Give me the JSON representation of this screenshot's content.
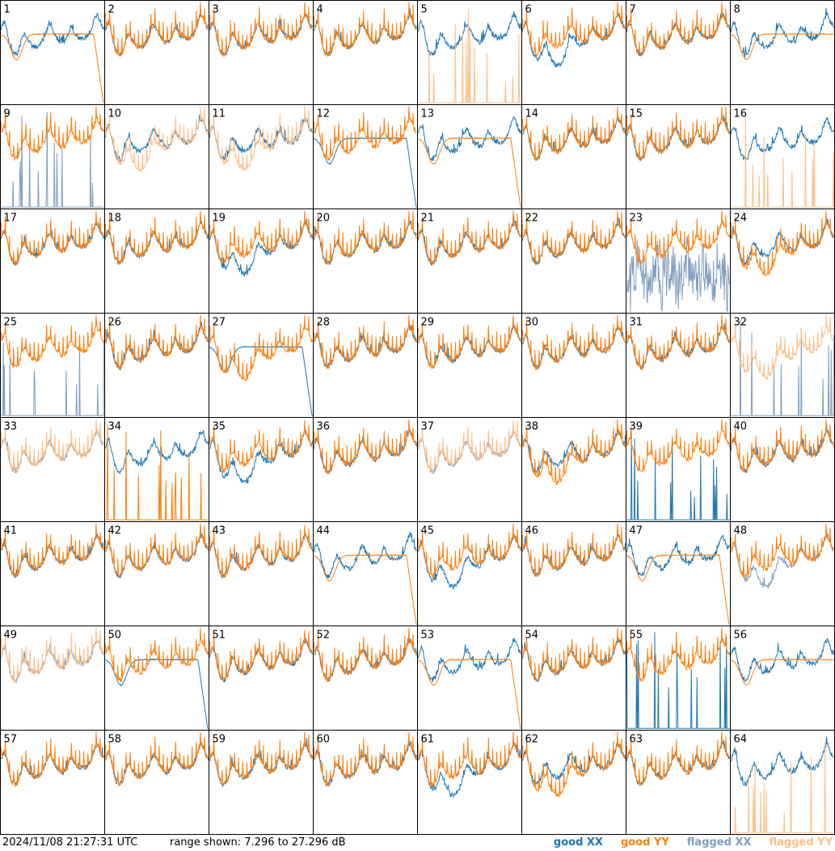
{
  "footer": {
    "timestamp": "2024/11/08 21:27:31 UTC",
    "range_text": "range shown: 7.296 to 27.296 dB"
  },
  "legend": [
    {
      "label": "good XX",
      "color": "#1f77b4"
    },
    {
      "label": "good YY",
      "color": "#ff7f0e"
    },
    {
      "label": "flagged XX",
      "color": "#7f9fbf"
    },
    {
      "label": "flagged YY",
      "color": "#ffbf87"
    }
  ],
  "chart_data": {
    "type": "line",
    "ylim": [
      7.296,
      27.296
    ],
    "yunit": "dB",
    "grid": false,
    "legend_position": "bottom-right",
    "series_colors": {
      "good_xx": "#1f77b4",
      "good_yy": "#ff7f0e",
      "flagged_xx": "#7f9fbf",
      "flagged_yy": "#ffbf87"
    },
    "panels": [
      {
        "label": "1",
        "xx": "good",
        "yy": "good",
        "xx_shape": "normal",
        "yy_shape": "smooth-dip"
      },
      {
        "label": "2",
        "xx": "good",
        "yy": "good",
        "xx_shape": "normal",
        "yy_shape": "normal"
      },
      {
        "label": "3",
        "xx": "good",
        "yy": "good",
        "xx_shape": "normal",
        "yy_shape": "normal"
      },
      {
        "label": "4",
        "xx": "good",
        "yy": "good",
        "xx_shape": "normal",
        "yy_shape": "normal"
      },
      {
        "label": "5",
        "xx": "good",
        "yy": "flagged",
        "xx_shape": "normal",
        "yy_shape": "spikes"
      },
      {
        "label": "6",
        "xx": "good",
        "yy": "good",
        "xx_shape": "deep",
        "yy_shape": "normal"
      },
      {
        "label": "7",
        "xx": "good",
        "yy": "good",
        "xx_shape": "normal",
        "yy_shape": "normal"
      },
      {
        "label": "8",
        "xx": "good",
        "yy": "good",
        "xx_shape": "normal",
        "yy_shape": "smooth"
      },
      {
        "label": "9",
        "xx": "flagged",
        "yy": "good",
        "xx_shape": "spikes",
        "yy_shape": "normal"
      },
      {
        "label": "10",
        "xx": "good",
        "yy": "flagged",
        "xx_shape": "normal",
        "yy_shape": "deep"
      },
      {
        "label": "11",
        "xx": "good",
        "yy": "flagged",
        "xx_shape": "normal",
        "yy_shape": "deep"
      },
      {
        "label": "12",
        "xx": "good",
        "yy": "good",
        "xx_shape": "smooth-dip",
        "yy_shape": "normal"
      },
      {
        "label": "13",
        "xx": "good",
        "yy": "good",
        "xx_shape": "normal",
        "yy_shape": "smooth-dip"
      },
      {
        "label": "14",
        "xx": "good",
        "yy": "good",
        "xx_shape": "normal",
        "yy_shape": "normal"
      },
      {
        "label": "15",
        "xx": "good",
        "yy": "good",
        "xx_shape": "normal",
        "yy_shape": "normal"
      },
      {
        "label": "16",
        "xx": "good",
        "yy": "flagged",
        "xx_shape": "normal",
        "yy_shape": "spikes"
      },
      {
        "label": "17",
        "xx": "good",
        "yy": "good",
        "xx_shape": "normal",
        "yy_shape": "normal"
      },
      {
        "label": "18",
        "xx": "good",
        "yy": "good",
        "xx_shape": "normal",
        "yy_shape": "normal"
      },
      {
        "label": "19",
        "xx": "good",
        "yy": "good",
        "xx_shape": "deep",
        "yy_shape": "normal"
      },
      {
        "label": "20",
        "xx": "good",
        "yy": "good",
        "xx_shape": "normal",
        "yy_shape": "normal"
      },
      {
        "label": "21",
        "xx": "good",
        "yy": "good",
        "xx_shape": "normal",
        "yy_shape": "normal"
      },
      {
        "label": "22",
        "xx": "good",
        "yy": "good",
        "xx_shape": "normal",
        "yy_shape": "normal"
      },
      {
        "label": "23",
        "xx": "flagged",
        "yy": "good",
        "xx_shape": "noisy-low",
        "yy_shape": "normal"
      },
      {
        "label": "24",
        "xx": "good",
        "yy": "good",
        "xx_shape": "normal",
        "yy_shape": "deep"
      },
      {
        "label": "25",
        "xx": "flagged",
        "yy": "good",
        "xx_shape": "spikes",
        "yy_shape": "normal"
      },
      {
        "label": "26",
        "xx": "good",
        "yy": "good",
        "xx_shape": "normal",
        "yy_shape": "normal"
      },
      {
        "label": "27",
        "xx": "good",
        "yy": "good",
        "xx_shape": "smooth-dip",
        "yy_shape": "deep"
      },
      {
        "label": "28",
        "xx": "good",
        "yy": "good",
        "xx_shape": "normal",
        "yy_shape": "normal"
      },
      {
        "label": "29",
        "xx": "good",
        "yy": "good",
        "xx_shape": "normal",
        "yy_shape": "normal"
      },
      {
        "label": "30",
        "xx": "good",
        "yy": "good",
        "xx_shape": "normal",
        "yy_shape": "normal"
      },
      {
        "label": "31",
        "xx": "good",
        "yy": "good",
        "xx_shape": "normal",
        "yy_shape": "normal"
      },
      {
        "label": "32",
        "xx": "flagged",
        "yy": "flagged",
        "xx_shape": "spikes",
        "yy_shape": "deep"
      },
      {
        "label": "33",
        "xx": "flagged",
        "yy": "flagged",
        "xx_shape": "normal",
        "yy_shape": "normal"
      },
      {
        "label": "34",
        "xx": "good",
        "yy": "good",
        "xx_shape": "normal",
        "yy_shape": "spikes"
      },
      {
        "label": "35",
        "xx": "good",
        "yy": "good",
        "xx_shape": "deep",
        "yy_shape": "normal"
      },
      {
        "label": "36",
        "xx": "good",
        "yy": "good",
        "xx_shape": "normal",
        "yy_shape": "normal"
      },
      {
        "label": "37",
        "xx": "flagged",
        "yy": "flagged",
        "xx_shape": "normal",
        "yy_shape": "normal"
      },
      {
        "label": "38",
        "xx": "good",
        "yy": "good",
        "xx_shape": "normal",
        "yy_shape": "deep"
      },
      {
        "label": "39",
        "xx": "good",
        "yy": "good",
        "xx_shape": "spikes",
        "yy_shape": "normal"
      },
      {
        "label": "40",
        "xx": "good",
        "yy": "good",
        "xx_shape": "normal",
        "yy_shape": "normal"
      },
      {
        "label": "41",
        "xx": "good",
        "yy": "good",
        "xx_shape": "normal",
        "yy_shape": "normal"
      },
      {
        "label": "42",
        "xx": "good",
        "yy": "good",
        "xx_shape": "normal",
        "yy_shape": "normal"
      },
      {
        "label": "43",
        "xx": "good",
        "yy": "good",
        "xx_shape": "normal",
        "yy_shape": "normal"
      },
      {
        "label": "44",
        "xx": "good",
        "yy": "good",
        "xx_shape": "normal",
        "yy_shape": "smooth-dip"
      },
      {
        "label": "45",
        "xx": "good",
        "yy": "good",
        "xx_shape": "deep",
        "yy_shape": "normal"
      },
      {
        "label": "46",
        "xx": "good",
        "yy": "good",
        "xx_shape": "normal",
        "yy_shape": "normal"
      },
      {
        "label": "47",
        "xx": "good",
        "yy": "good",
        "xx_shape": "normal",
        "yy_shape": "smooth-dip"
      },
      {
        "label": "48",
        "xx": "flagged",
        "yy": "good",
        "xx_shape": "deep",
        "yy_shape": "normal"
      },
      {
        "label": "49",
        "xx": "flagged",
        "yy": "flagged",
        "xx_shape": "normal",
        "yy_shape": "normal"
      },
      {
        "label": "50",
        "xx": "good",
        "yy": "good",
        "xx_shape": "smooth-dip",
        "yy_shape": "normal"
      },
      {
        "label": "51",
        "xx": "good",
        "yy": "good",
        "xx_shape": "normal",
        "yy_shape": "normal"
      },
      {
        "label": "52",
        "xx": "good",
        "yy": "good",
        "xx_shape": "normal",
        "yy_shape": "normal"
      },
      {
        "label": "53",
        "xx": "good",
        "yy": "good",
        "xx_shape": "normal",
        "yy_shape": "smooth-dip"
      },
      {
        "label": "54",
        "xx": "good",
        "yy": "good",
        "xx_shape": "normal",
        "yy_shape": "normal"
      },
      {
        "label": "55",
        "xx": "good",
        "yy": "good",
        "xx_shape": "spikes",
        "yy_shape": "normal"
      },
      {
        "label": "56",
        "xx": "good",
        "yy": "good",
        "xx_shape": "normal",
        "yy_shape": "smooth"
      },
      {
        "label": "57",
        "xx": "good",
        "yy": "good",
        "xx_shape": "normal",
        "yy_shape": "normal"
      },
      {
        "label": "58",
        "xx": "good",
        "yy": "good",
        "xx_shape": "normal",
        "yy_shape": "normal"
      },
      {
        "label": "59",
        "xx": "good",
        "yy": "good",
        "xx_shape": "normal",
        "yy_shape": "normal"
      },
      {
        "label": "60",
        "xx": "good",
        "yy": "good",
        "xx_shape": "normal",
        "yy_shape": "normal"
      },
      {
        "label": "61",
        "xx": "good",
        "yy": "good",
        "xx_shape": "deep",
        "yy_shape": "normal"
      },
      {
        "label": "62",
        "xx": "good",
        "yy": "good",
        "xx_shape": "normal",
        "yy_shape": "deep"
      },
      {
        "label": "63",
        "xx": "good",
        "yy": "good",
        "xx_shape": "normal",
        "yy_shape": "normal"
      },
      {
        "label": "64",
        "xx": "good",
        "yy": "flagged",
        "xx_shape": "normal",
        "yy_shape": "spikes"
      }
    ]
  }
}
